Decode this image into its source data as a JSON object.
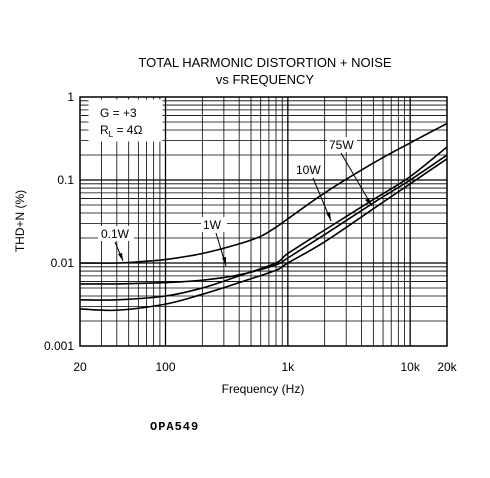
{
  "chart_data": {
    "type": "line",
    "title_line1": "TOTAL HARMONIC DISTORTION + NOISE",
    "title_line2": "vs FREQUENCY",
    "xlabel": "Frequency (Hz)",
    "ylabel": "THD+N (%)",
    "x_scale": "log",
    "y_scale": "log",
    "xlim": [
      20,
      20000
    ],
    "ylim": [
      0.001,
      1
    ],
    "x_ticks": [
      {
        "value": 20,
        "label": "20"
      },
      {
        "value": 100,
        "label": "100"
      },
      {
        "value": 1000,
        "label": "1k"
      },
      {
        "value": 10000,
        "label": "10k"
      },
      {
        "value": 20000,
        "label": "20k"
      }
    ],
    "y_ticks": [
      {
        "value": 1,
        "label": "1"
      },
      {
        "value": 0.1,
        "label": "0.1"
      },
      {
        "value": 0.01,
        "label": "0.01"
      },
      {
        "value": 0.001,
        "label": "0.001"
      }
    ],
    "grid": true,
    "conditions": {
      "gain": "G = +3",
      "load_prefix": "R",
      "load_sub": "L",
      "load_value": " = 4Ω"
    },
    "series": [
      {
        "name": "0.1W",
        "x": [
          20,
          40,
          70,
          100,
          200,
          400,
          600,
          800,
          1000,
          2000,
          5000,
          10000,
          20000
        ],
        "y": [
          0.01,
          0.01,
          0.0105,
          0.011,
          0.013,
          0.017,
          0.021,
          0.027,
          0.034,
          0.07,
          0.16,
          0.28,
          0.48
        ]
      },
      {
        "name": "1W",
        "x": [
          20,
          40,
          100,
          200,
          400,
          800,
          1000,
          2000,
          5000,
          10000,
          20000
        ],
        "y": [
          0.0056,
          0.0056,
          0.0058,
          0.0062,
          0.0072,
          0.0095,
          0.0115,
          0.022,
          0.053,
          0.1,
          0.2
        ]
      },
      {
        "name": "10W",
        "x": [
          20,
          40,
          100,
          200,
          400,
          800,
          1000,
          2000,
          5000,
          10000,
          20000
        ],
        "y": [
          0.0036,
          0.0036,
          0.004,
          0.005,
          0.007,
          0.01,
          0.013,
          0.025,
          0.058,
          0.11,
          0.25
        ]
      },
      {
        "name": "75W",
        "x": [
          20,
          40,
          100,
          200,
          400,
          800,
          1000,
          2000,
          5000,
          10000,
          20000
        ],
        "y": [
          0.0028,
          0.0027,
          0.0032,
          0.0042,
          0.0058,
          0.0082,
          0.01,
          0.018,
          0.045,
          0.09,
          0.18
        ]
      }
    ]
  },
  "footer": {
    "part_number": "OPA549"
  }
}
